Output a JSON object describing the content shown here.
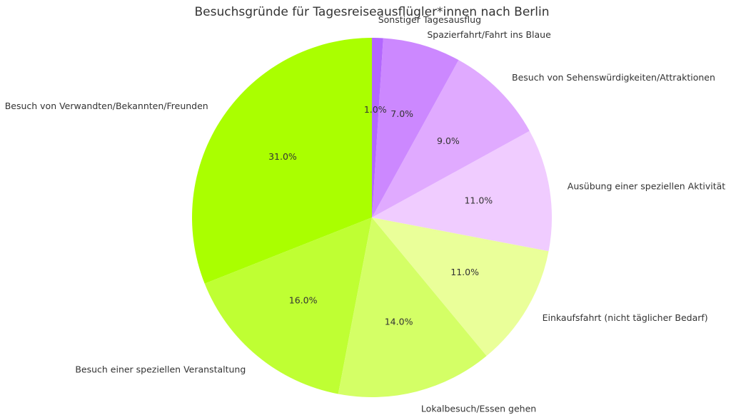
{
  "chart_data": {
    "type": "pie",
    "title": "Besuchsgründe für Tagesreiseausflügler*innen nach Berlin",
    "start_angle_deg": 90,
    "direction": "counterclockwise",
    "slices": [
      {
        "label": "Besuch von Verwandten/Bekannten/Freunden",
        "value": 31.0,
        "pct_label": "31.0%",
        "color": "#aaff00"
      },
      {
        "label": "Besuch einer speziellen Veranstaltung",
        "value": 16.0,
        "pct_label": "16.0%",
        "color": "#bfff33"
      },
      {
        "label": "Lokalbesuch/Essen gehen",
        "value": 14.0,
        "pct_label": "14.0%",
        "color": "#d4ff66"
      },
      {
        "label": "Einkaufsfahrt (nicht täglicher Bedarf)",
        "value": 11.0,
        "pct_label": "11.0%",
        "color": "#eaff99"
      },
      {
        "label": "Ausübung einer speziellen Aktivität",
        "value": 11.0,
        "pct_label": "11.0%",
        "color": "#f0ccff"
      },
      {
        "label": "Besuch von Sehenswürdigkeiten/Attraktionen",
        "value": 9.0,
        "pct_label": "9.0%",
        "color": "#e0aaff"
      },
      {
        "label": "Spazierfahrt/Fahrt ins Blaue",
        "value": 7.0,
        "pct_label": "7.0%",
        "color": "#cc88ff"
      },
      {
        "label": "Sonstiger Tagesausflug",
        "value": 1.0,
        "pct_label": "1.0%",
        "color": "#b366ff"
      }
    ]
  }
}
